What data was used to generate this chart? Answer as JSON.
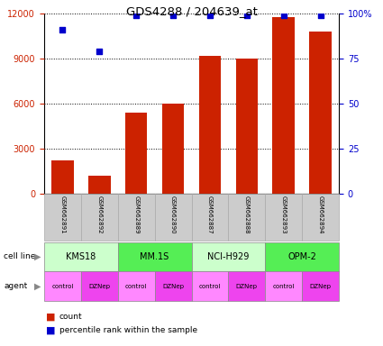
{
  "title": "GDS4288 / 204639_at",
  "samples": [
    "GSM662891",
    "GSM662892",
    "GSM662889",
    "GSM662890",
    "GSM662887",
    "GSM662888",
    "GSM662893",
    "GSM662894"
  ],
  "counts": [
    2200,
    1200,
    5400,
    6000,
    9200,
    9000,
    11800,
    10800
  ],
  "percentile_ranks": [
    91,
    79,
    99,
    99,
    99,
    99,
    99,
    99
  ],
  "cell_lines": [
    {
      "label": "KMS18",
      "color": "#ccffcc",
      "cols": [
        0,
        1
      ]
    },
    {
      "label": "MM.1S",
      "color": "#55ee55",
      "cols": [
        2,
        3
      ]
    },
    {
      "label": "NCI-H929",
      "color": "#ccffcc",
      "cols": [
        4,
        5
      ]
    },
    {
      "label": "OPM-2",
      "color": "#55ee55",
      "cols": [
        6,
        7
      ]
    }
  ],
  "agents": [
    "control",
    "DZNep",
    "control",
    "DZNep",
    "control",
    "DZNep",
    "control",
    "DZNep"
  ],
  "agent_color_control": "#ff88ff",
  "agent_color_dznep": "#ee44ee",
  "bar_color": "#cc2200",
  "dot_color": "#0000cc",
  "ylim_left": [
    0,
    12000
  ],
  "ylim_right": [
    0,
    100
  ],
  "yticks_left": [
    0,
    3000,
    6000,
    9000,
    12000
  ],
  "ytick_labels_left": [
    "0",
    "3000",
    "6000",
    "9000",
    "12000"
  ],
  "yticks_right": [
    0,
    25,
    50,
    75,
    100
  ],
  "ytick_labels_right": [
    "0",
    "25",
    "50",
    "75",
    "100%"
  ],
  "left_tick_color": "#cc2200",
  "right_tick_color": "#0000cc",
  "legend_count_label": "count",
  "legend_pct_label": "percentile rank within the sample",
  "sample_box_color": "#cccccc",
  "sample_box_edge": "#aaaaaa"
}
